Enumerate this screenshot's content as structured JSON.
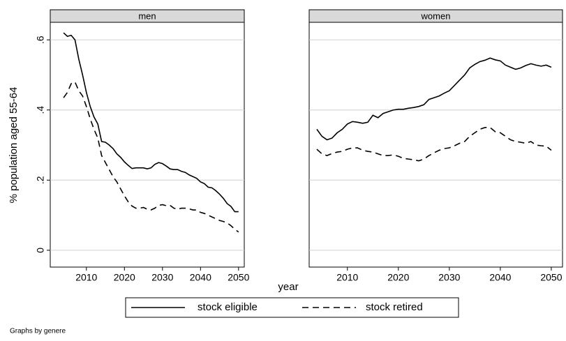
{
  "y_axis_label": "% population aged 55-64",
  "x_axis_label": "year",
  "note": "Graphs by genere",
  "chart_data": [
    {
      "type": "line",
      "title": "men",
      "x": [
        2004,
        2005,
        2006,
        2007,
        2008,
        2009,
        2010,
        2011,
        2012,
        2013,
        2014,
        2015,
        2016,
        2017,
        2018,
        2019,
        2020,
        2021,
        2022,
        2023,
        2024,
        2025,
        2026,
        2027,
        2028,
        2029,
        2030,
        2031,
        2032,
        2033,
        2034,
        2035,
        2036,
        2037,
        2038,
        2039,
        2040,
        2041,
        2042,
        2043,
        2044,
        2045,
        2046,
        2047,
        2048,
        2049,
        2050
      ],
      "series": [
        {
          "name": "stock eligible",
          "color": "#000000",
          "dash": "solid",
          "values": [
            0.62,
            0.61,
            0.613,
            0.6,
            0.545,
            0.5,
            0.45,
            0.41,
            0.38,
            0.36,
            0.31,
            0.308,
            0.3,
            0.29,
            0.275,
            0.265,
            0.252,
            0.242,
            0.233,
            0.235,
            0.235,
            0.235,
            0.232,
            0.235,
            0.245,
            0.25,
            0.247,
            0.24,
            0.232,
            0.23,
            0.23,
            0.225,
            0.222,
            0.215,
            0.21,
            0.205,
            0.195,
            0.19,
            0.18,
            0.178,
            0.17,
            0.16,
            0.148,
            0.133,
            0.125,
            0.11,
            0.11
          ]
        },
        {
          "name": "stock retired",
          "color": "#000000",
          "dash": "dashed",
          "values": [
            0.435,
            0.45,
            0.475,
            0.48,
            0.455,
            0.44,
            0.41,
            0.375,
            0.345,
            0.32,
            0.27,
            0.25,
            0.23,
            0.21,
            0.195,
            0.175,
            0.155,
            0.138,
            0.126,
            0.12,
            0.12,
            0.122,
            0.117,
            0.115,
            0.12,
            0.128,
            0.13,
            0.127,
            0.128,
            0.12,
            0.117,
            0.12,
            0.12,
            0.118,
            0.115,
            0.115,
            0.108,
            0.105,
            0.1,
            0.095,
            0.09,
            0.085,
            0.082,
            0.078,
            0.07,
            0.06,
            0.052
          ]
        }
      ],
      "xlim": [
        2000.5,
        2051.5
      ],
      "ylim": [
        -0.048,
        0.65
      ],
      "xticks": [
        2010,
        2020,
        2030,
        2040,
        2050
      ],
      "yticks": [
        0,
        {
          "value": 0.2,
          "label": ".2"
        },
        {
          "value": 0.4,
          "label": ".4"
        },
        {
          "value": 0.6,
          "label": ".6"
        }
      ],
      "show_ytick_labels": true,
      "grid": true
    },
    {
      "type": "line",
      "title": "women",
      "x": [
        2004,
        2005,
        2006,
        2007,
        2008,
        2009,
        2010,
        2011,
        2012,
        2013,
        2014,
        2015,
        2016,
        2017,
        2018,
        2019,
        2020,
        2021,
        2022,
        2023,
        2024,
        2025,
        2026,
        2027,
        2028,
        2029,
        2030,
        2031,
        2032,
        2033,
        2034,
        2035,
        2036,
        2037,
        2038,
        2039,
        2040,
        2041,
        2042,
        2043,
        2044,
        2045,
        2046,
        2047,
        2048,
        2049,
        2050
      ],
      "series": [
        {
          "name": "stock eligible",
          "color": "#000000",
          "dash": "solid",
          "values": [
            0.345,
            0.325,
            0.315,
            0.32,
            0.335,
            0.345,
            0.36,
            0.367,
            0.365,
            0.362,
            0.365,
            0.385,
            0.378,
            0.39,
            0.395,
            0.4,
            0.402,
            0.402,
            0.405,
            0.407,
            0.41,
            0.415,
            0.43,
            0.435,
            0.44,
            0.448,
            0.455,
            0.47,
            0.485,
            0.5,
            0.52,
            0.53,
            0.538,
            0.542,
            0.548,
            0.543,
            0.54,
            0.528,
            0.522,
            0.516,
            0.52,
            0.527,
            0.532,
            0.528,
            0.525,
            0.528,
            0.522
          ]
        },
        {
          "name": "stock retired",
          "color": "#000000",
          "dash": "dashed",
          "values": [
            0.288,
            0.275,
            0.27,
            0.276,
            0.28,
            0.282,
            0.288,
            0.292,
            0.292,
            0.285,
            0.282,
            0.28,
            0.275,
            0.27,
            0.27,
            0.272,
            0.268,
            0.262,
            0.26,
            0.258,
            0.255,
            0.26,
            0.27,
            0.278,
            0.285,
            0.29,
            0.292,
            0.298,
            0.305,
            0.31,
            0.325,
            0.335,
            0.345,
            0.35,
            0.35,
            0.338,
            0.335,
            0.325,
            0.315,
            0.31,
            0.308,
            0.305,
            0.31,
            0.3,
            0.298,
            0.297,
            0.285
          ]
        }
      ],
      "xlim": [
        2002.5,
        2052.2
      ],
      "ylim": [
        -0.048,
        0.65
      ],
      "xticks": [
        2010,
        2020,
        2030,
        2040,
        2050
      ],
      "yticks": [
        0,
        {
          "value": 0.2,
          "label": ".2"
        },
        {
          "value": 0.4,
          "label": ".4"
        },
        {
          "value": 0.6,
          "label": ".6"
        }
      ],
      "show_ytick_labels": false,
      "grid": true
    }
  ]
}
